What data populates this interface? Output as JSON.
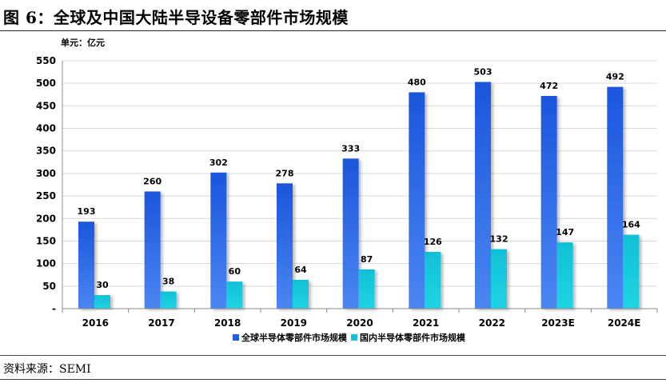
{
  "figure": {
    "title": "图 6：全球及中国大陆半导设备零部件市场规模",
    "source": "资料来源：SEMI"
  },
  "chart_data": {
    "type": "bar",
    "unit_label": "单元：亿元",
    "categories": [
      "2016",
      "2017",
      "2018",
      "2019",
      "2020",
      "2021",
      "2022",
      "2023E",
      "2024E"
    ],
    "series": [
      {
        "name": "全球半导体零部件市场规模",
        "values": [
          193,
          260,
          302,
          278,
          333,
          480,
          503,
          472,
          492
        ],
        "color": "#1f5fe0"
      },
      {
        "name": "国内半导体零部件市场规模",
        "values": [
          30,
          38,
          60,
          64,
          87,
          126,
          132,
          147,
          164
        ],
        "color": "#14c3d6"
      }
    ],
    "ylim": [
      0,
      550
    ],
    "yticks": [
      "-",
      "50",
      "100",
      "150",
      "200",
      "250",
      "300",
      "350",
      "400",
      "450",
      "500",
      "550"
    ],
    "grid": true,
    "legend_position": "bottom"
  }
}
